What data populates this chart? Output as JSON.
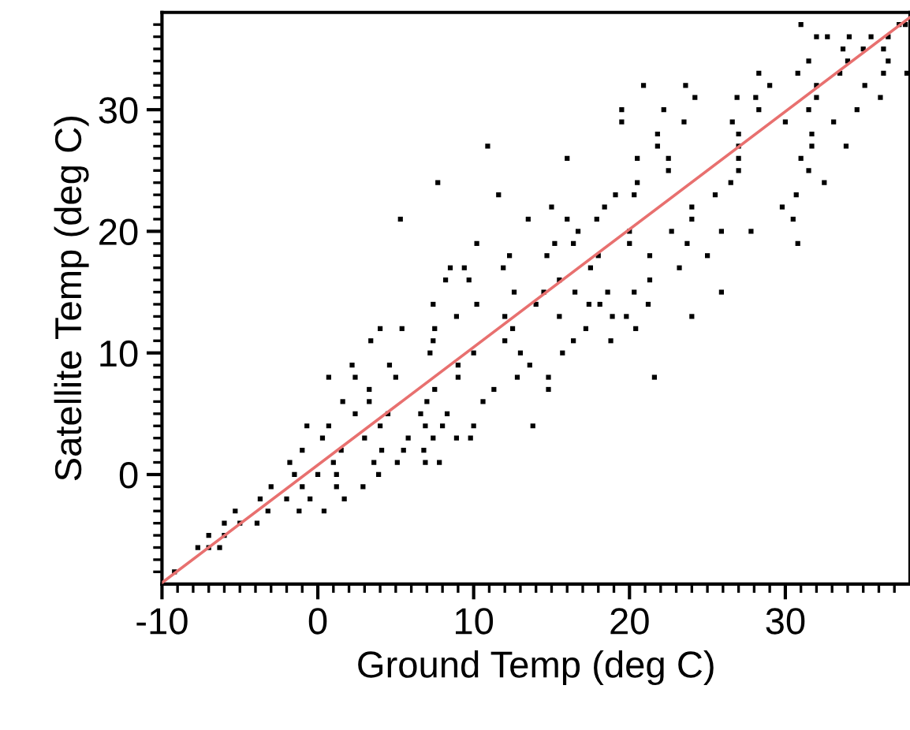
{
  "chart_data": {
    "type": "scatter",
    "xlabel": "Ground Temp (deg C)",
    "ylabel": "Satellite Temp (deg C)",
    "xlim": [
      -10,
      38
    ],
    "ylim": [
      -9,
      38
    ],
    "marker": "square",
    "grid": false,
    "legend": false,
    "xticks": [
      -10,
      {
        "value": -9,
        "label": null
      },
      {
        "value": -8,
        "label": null
      },
      {
        "value": -7,
        "label": null
      },
      {
        "value": -6,
        "label": null
      },
      {
        "value": -5,
        "label": null
      },
      {
        "value": -4,
        "label": null
      },
      {
        "value": -3,
        "label": null
      },
      {
        "value": -2,
        "label": null
      },
      {
        "value": -1,
        "label": null
      },
      0,
      {
        "value": 1,
        "label": null
      },
      {
        "value": 2,
        "label": null
      },
      {
        "value": 3,
        "label": null
      },
      {
        "value": 4,
        "label": null
      },
      {
        "value": 5,
        "label": null
      },
      {
        "value": 6,
        "label": null
      },
      {
        "value": 7,
        "label": null
      },
      {
        "value": 8,
        "label": null
      },
      {
        "value": 9,
        "label": null
      },
      10,
      {
        "value": 11,
        "label": null
      },
      {
        "value": 12,
        "label": null
      },
      {
        "value": 13,
        "label": null
      },
      {
        "value": 14,
        "label": null
      },
      {
        "value": 15,
        "label": null
      },
      {
        "value": 16,
        "label": null
      },
      {
        "value": 17,
        "label": null
      },
      {
        "value": 18,
        "label": null
      },
      {
        "value": 19,
        "label": null
      },
      20,
      {
        "value": 21,
        "label": null
      },
      {
        "value": 22,
        "label": null
      },
      {
        "value": 23,
        "label": null
      },
      {
        "value": 24,
        "label": null
      },
      {
        "value": 25,
        "label": null
      },
      {
        "value": 26,
        "label": null
      },
      {
        "value": 27,
        "label": null
      },
      {
        "value": 28,
        "label": null
      },
      {
        "value": 29,
        "label": null
      },
      30,
      {
        "value": 31,
        "label": null
      },
      {
        "value": 32,
        "label": null
      },
      {
        "value": 33,
        "label": null
      },
      {
        "value": 34,
        "label": null
      },
      {
        "value": 35,
        "label": null
      },
      {
        "value": 36,
        "label": null
      },
      {
        "value": 37,
        "label": null
      }
    ],
    "yticks": [
      {
        "value": -8,
        "label": null
      },
      {
        "value": -7,
        "label": null
      },
      {
        "value": -6,
        "label": null
      },
      {
        "value": -5,
        "label": null
      },
      {
        "value": -4,
        "label": null
      },
      {
        "value": -3,
        "label": null
      },
      {
        "value": -2,
        "label": null
      },
      {
        "value": -1,
        "label": null
      },
      0,
      {
        "value": 1,
        "label": null
      },
      {
        "value": 2,
        "label": null
      },
      {
        "value": 3,
        "label": null
      },
      {
        "value": 4,
        "label": null
      },
      {
        "value": 5,
        "label": null
      },
      {
        "value": 6,
        "label": null
      },
      {
        "value": 7,
        "label": null
      },
      {
        "value": 8,
        "label": null
      },
      {
        "value": 9,
        "label": null
      },
      10,
      {
        "value": 11,
        "label": null
      },
      {
        "value": 12,
        "label": null
      },
      {
        "value": 13,
        "label": null
      },
      {
        "value": 14,
        "label": null
      },
      {
        "value": 15,
        "label": null
      },
      {
        "value": 16,
        "label": null
      },
      {
        "value": 17,
        "label": null
      },
      {
        "value": 18,
        "label": null
      },
      {
        "value": 19,
        "label": null
      },
      20,
      {
        "value": 21,
        "label": null
      },
      {
        "value": 22,
        "label": null
      },
      {
        "value": 23,
        "label": null
      },
      {
        "value": 24,
        "label": null
      },
      {
        "value": 25,
        "label": null
      },
      {
        "value": 26,
        "label": null
      },
      {
        "value": 27,
        "label": null
      },
      {
        "value": 28,
        "label": null
      },
      {
        "value": 29,
        "label": null
      },
      30,
      {
        "value": 31,
        "label": null
      },
      {
        "value": 32,
        "label": null
      },
      {
        "value": 33,
        "label": null
      },
      {
        "value": 34,
        "label": null
      },
      {
        "value": 35,
        "label": null
      },
      {
        "value": 36,
        "label": null
      },
      {
        "value": 37,
        "label": null
      }
    ],
    "series": [
      {
        "color": "#000000",
        "x": [
          -9.2,
          -7.7,
          -7,
          -6.3,
          -7,
          -6,
          -6,
          -5,
          -3.9,
          -5.3,
          -3.2,
          -1.2,
          0.4,
          -3.7,
          -2,
          -0.5,
          1.7,
          -3,
          -1,
          1.2,
          2.9,
          -1.5,
          0,
          1.2,
          3.9,
          -1.8,
          1,
          3.6,
          5.1,
          6.9,
          7.8,
          -1,
          1.5,
          4.1,
          5.5,
          6.8,
          0.3,
          3,
          5.8,
          7.4,
          8.9,
          9.8,
          -0.7,
          0.7,
          4,
          6.9,
          8,
          10,
          13.8,
          2.4,
          4.5,
          6.6,
          8.3,
          1.6,
          3.3,
          7,
          10.6,
          3.3,
          7.5,
          11.3,
          14.8,
          0.7,
          2.4,
          5,
          9,
          12.8,
          14.8,
          21.6,
          2.2,
          4.6,
          9,
          13.6,
          7.2,
          10,
          13,
          15.7,
          3.4,
          7.4,
          12,
          16.4,
          18.8,
          4,
          5.4,
          7.5,
          12.5,
          17.2,
          20.4,
          8.9,
          12,
          15.5,
          18.9,
          19.8,
          24,
          7.4,
          10.2,
          14,
          17.4,
          18.1,
          21.2,
          12.6,
          14.5,
          16.5,
          18.6,
          20.3,
          25.9,
          8.2,
          9.7,
          15.5,
          21.3,
          8.5,
          9.4,
          11.9,
          17.5,
          23.2,
          12.3,
          14.7,
          18,
          21.3,
          25,
          10.2,
          15.2,
          16.4,
          20,
          23.7,
          30.8,
          16.7,
          20,
          22.7,
          25.9,
          27.8,
          5.3,
          13.5,
          16,
          17.9,
          24,
          30.5,
          15,
          18.4,
          24,
          29.8,
          11.6,
          19.1,
          20.3,
          25.5,
          30.7,
          7.7,
          20.5,
          26.5,
          32.5,
          22.5,
          27,
          31.5,
          16,
          20.5,
          22.5,
          27,
          31,
          10.9,
          21.8,
          27,
          31.7,
          33.9,
          21.8,
          27,
          31.7,
          19.5,
          23.5,
          26.6,
          30,
          33.1,
          19.5,
          22.2,
          28.3,
          31.5,
          34.6,
          24.2,
          26.9,
          28.1,
          32,
          36.1,
          20.9,
          23.6,
          29,
          32,
          35.1,
          28.3,
          30.8,
          33.5,
          36.3,
          37.8,
          31.5,
          34,
          36.6,
          33.7,
          35,
          36.3,
          32,
          32.7,
          34.1,
          35.5,
          36.6,
          31,
          37.3,
          37.7
        ],
        "values": [
          -8,
          -6,
          -6,
          -6,
          -5,
          -5,
          -4,
          -4,
          -4,
          -3,
          -3,
          -3,
          -3,
          -2,
          -2,
          -2,
          -2,
          -1,
          -1,
          -1,
          -1,
          0,
          0,
          0,
          0,
          1,
          1,
          1,
          1,
          1,
          1,
          2,
          2,
          2,
          2,
          2,
          3,
          3,
          3,
          3,
          3,
          3,
          4,
          4,
          4,
          4,
          4,
          4,
          4,
          5,
          5,
          5,
          5,
          6,
          6,
          6,
          6,
          7,
          7,
          7,
          7,
          8,
          8,
          8,
          8,
          8,
          8,
          8,
          9,
          9,
          9,
          9,
          10,
          10,
          10,
          10,
          11,
          11,
          11,
          11,
          11,
          12,
          12,
          12,
          12,
          12,
          12,
          13,
          13,
          13,
          13,
          13,
          13,
          14,
          14,
          14,
          14,
          14,
          14,
          15,
          15,
          15,
          15,
          15,
          15,
          16,
          16,
          16,
          16,
          17,
          17,
          17,
          17,
          17,
          18,
          18,
          18,
          18,
          18,
          19,
          19,
          19,
          19,
          19,
          19,
          20,
          20,
          20,
          20,
          20,
          21,
          21,
          21,
          21,
          21,
          21,
          22,
          22,
          22,
          22,
          23,
          23,
          23,
          23,
          23,
          24,
          24,
          24,
          24,
          25,
          25,
          25,
          26,
          26,
          26,
          26,
          26,
          27,
          27,
          27,
          27,
          27,
          28,
          28,
          28,
          29,
          29,
          29,
          29,
          29,
          30,
          30,
          30,
          30,
          30,
          31,
          31,
          31,
          31,
          31,
          32,
          32,
          32,
          32,
          32,
          33,
          33,
          33,
          33,
          33,
          34,
          34,
          34,
          35,
          35,
          35,
          36,
          36,
          36,
          36,
          36,
          37,
          37,
          37
        ]
      },
      {
        "type": "line",
        "color": "#e8706f",
        "marker": "none",
        "line_style": "solid",
        "x": [
          -10,
          38
        ],
        "values": [
          -8.9,
          37.6
        ]
      }
    ]
  }
}
